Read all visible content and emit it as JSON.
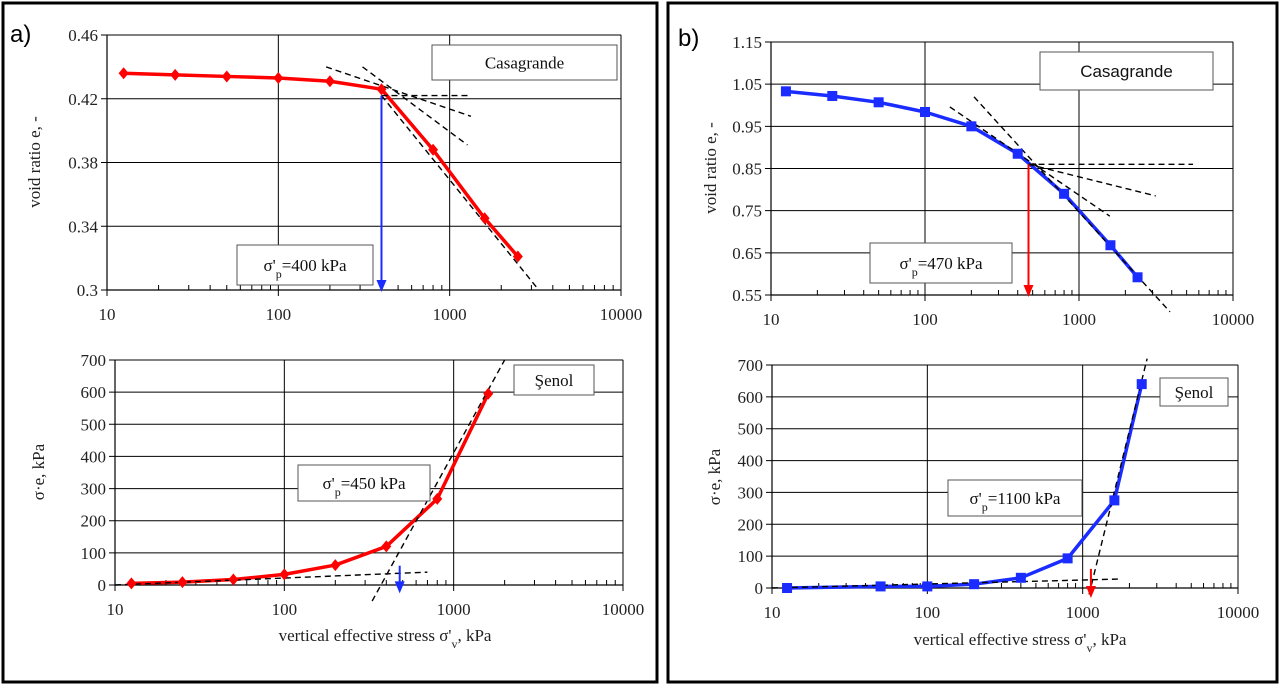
{
  "panels": [
    {
      "label": "a)"
    },
    {
      "label": "b)"
    }
  ],
  "colors": {
    "panel_a_series": "#ff0000",
    "panel_a_arrow": "#1a2cff",
    "panel_b_series": "#1a2cff",
    "panel_b_arrow": "#ff0000",
    "grid": "#000000",
    "dash": "#000000"
  },
  "chart_data": [
    {
      "id": "a-top",
      "type": "line",
      "panel": "a",
      "method_label": "Casagrande",
      "xscale": "log",
      "xlim": [
        10,
        10000
      ],
      "xticks": [
        "10",
        "100",
        "1000",
        "10000"
      ],
      "ylim": [
        0.3,
        0.46
      ],
      "yticks": [
        "0.3",
        "0.34",
        "0.38",
        "0.42",
        "0.46"
      ],
      "ylabel": "void ratio e, -",
      "xlabel": "",
      "marker": "diamond",
      "x": [
        12.5,
        25,
        50,
        100,
        200,
        400,
        800,
        1600,
        2500
      ],
      "y": [
        0.436,
        0.435,
        0.434,
        0.433,
        0.431,
        0.426,
        0.388,
        0.345,
        0.321
      ],
      "dashed_lines": [
        [
          [
            190,
            0.44
          ],
          [
            1330,
            0.409
          ]
        ],
        [
          [
            310,
            0.44
          ],
          [
            1270,
            0.391
          ]
        ],
        [
          [
            400,
            0.422
          ],
          [
            1330,
            0.422
          ]
        ],
        [
          [
            400,
            0.422
          ],
          [
            3200,
            0.302
          ]
        ]
      ],
      "arrow": {
        "x": 400,
        "from": 0.422,
        "to": 0.3
      },
      "result": {
        "prefix": "σ'",
        "sub": "p",
        "value": "=400 kPa"
      }
    },
    {
      "id": "a-bottom",
      "type": "line",
      "panel": "a",
      "method_label": "Şenol",
      "xscale": "log",
      "xlim": [
        10,
        10000
      ],
      "xticks": [
        "10",
        "100",
        "1000",
        "10000"
      ],
      "ylim": [
        0,
        700
      ],
      "yticks": [
        "0",
        "100",
        "200",
        "300",
        "400",
        "500",
        "600",
        "700"
      ],
      "ylabel": "σ·e, kPa",
      "xlabel": {
        "main": "vertical effective stress σ'",
        "sub": "v",
        "tail": ", kPa"
      },
      "marker": "diamond",
      "x": [
        12.5,
        25,
        50,
        100,
        200,
        400,
        800,
        1600
      ],
      "y": [
        5,
        9,
        17,
        33,
        62,
        120,
        268,
        595
      ],
      "dashed_lines": [
        [
          [
            10,
            0
          ],
          [
            700,
            40
          ]
        ],
        [
          [
            330,
            -50
          ],
          [
            2000,
            700
          ]
        ]
      ],
      "arrow": {
        "x": 480,
        "from": 60,
        "to": -20
      },
      "result": {
        "prefix": "σ'",
        "sub": "p",
        "value": "=450 kPa"
      }
    },
    {
      "id": "b-top",
      "type": "line",
      "panel": "b",
      "method_label": "Casagrande",
      "xscale": "log",
      "xlim": [
        10,
        10000
      ],
      "xticks": [
        "10",
        "100",
        "1000",
        "10000"
      ],
      "ylim": [
        0.55,
        1.15
      ],
      "yticks": [
        "0.55",
        "0.65",
        "0.75",
        "0.85",
        "0.95",
        "1.05",
        "1.15"
      ],
      "ylabel": "void ratio e, -",
      "xlabel": "",
      "marker": "square",
      "x": [
        12.5,
        25,
        50,
        100,
        200,
        400,
        800,
        1600,
        2400
      ],
      "y": [
        1.033,
        1.022,
        1.007,
        0.984,
        0.95,
        0.885,
        0.79,
        0.668,
        0.592
      ],
      "dashed_lines": [
        [
          [
            145,
            0.996
          ],
          [
            1585,
            0.737
          ]
        ],
        [
          [
            208,
            1.02
          ],
          [
            3900,
            0.51
          ]
        ],
        [
          [
            470,
            0.86
          ],
          [
            3150,
            0.785
          ]
        ],
        [
          [
            470,
            0.86
          ],
          [
            5500,
            0.86
          ]
        ]
      ],
      "arrow": {
        "x": 470,
        "from": 0.86,
        "to": 0.55
      },
      "result": {
        "prefix": "σ'",
        "sub": "p",
        "value": "=470 kPa"
      }
    },
    {
      "id": "b-bottom",
      "type": "line",
      "panel": "b",
      "method_label": "Şenol",
      "xscale": "log",
      "xlim": [
        10,
        10000
      ],
      "xticks": [
        "10",
        "100",
        "1000",
        "10000"
      ],
      "ylim": [
        0,
        700
      ],
      "yticks": [
        "0",
        "100",
        "200",
        "300",
        "400",
        "500",
        "600",
        "700"
      ],
      "ylabel": "σ·e, kPa",
      "xlabel": {
        "main": "vertical effective stress σ'",
        "sub": "v",
        "tail": ", kPa"
      },
      "marker": "square",
      "x": [
        12.5,
        50,
        100,
        200,
        400,
        800,
        1600,
        2400
      ],
      "y": [
        0,
        5,
        5,
        12,
        32,
        93,
        275,
        640
      ],
      "dashed_lines": [
        [
          [
            10,
            0
          ],
          [
            1700,
            28
          ]
        ],
        [
          [
            1100,
            -20
          ],
          [
            2600,
            720
          ]
        ]
      ],
      "arrow": {
        "x": 1130,
        "from": 60,
        "to": -25
      },
      "result": {
        "prefix": "σ'",
        "sub": "p",
        "value": "=1100 kPa"
      }
    }
  ]
}
